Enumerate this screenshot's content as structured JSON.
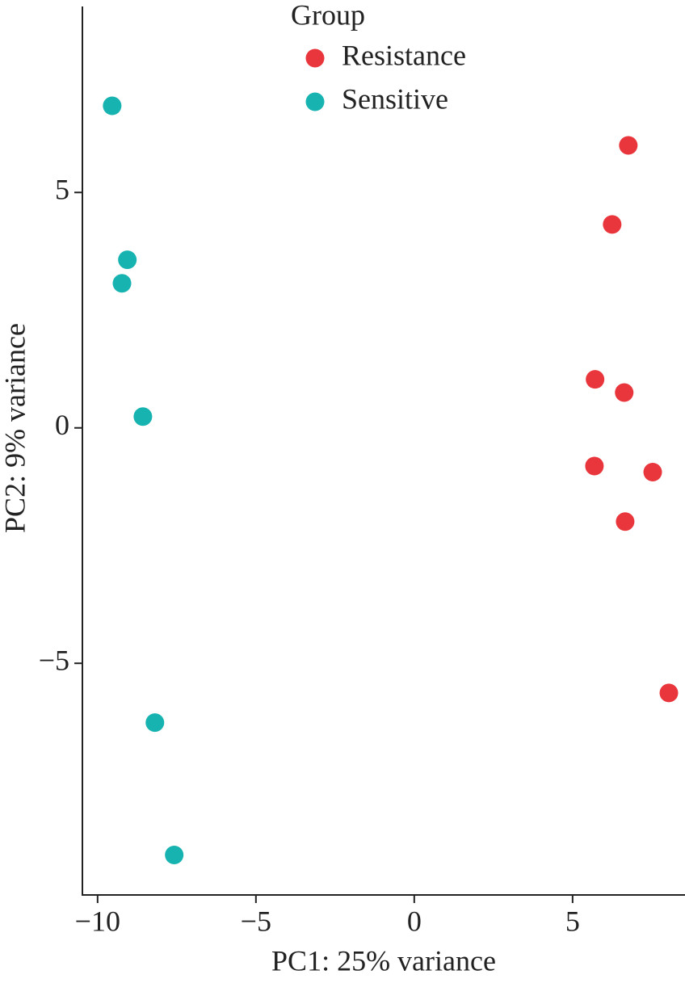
{
  "chart_data": {
    "type": "scatter",
    "x_label": "PC1: 25% variance",
    "y_label": "PC2: 9% variance",
    "legend_title": "Group",
    "legend": "top",
    "xlim": [
      -10.48,
      8.55
    ],
    "ylim": [
      -9.92,
      8.95
    ],
    "xticks": [
      {
        "value": -10,
        "label": "−10"
      },
      {
        "value": -5,
        "label": "−5"
      },
      0,
      5
    ],
    "yticks": [
      {
        "value": -5,
        "label": "−5"
      },
      0,
      5
    ],
    "series": [
      {
        "name": "Resistance",
        "color": "#e8363c",
        "x": [
          6.76,
          6.25,
          5.71,
          6.63,
          5.69,
          7.53,
          6.66,
          8.04
        ],
        "values": [
          6.0,
          4.32,
          1.03,
          0.75,
          -0.81,
          -0.94,
          -1.99,
          -5.63
        ]
      },
      {
        "name": "Sensitive",
        "color": "#17b3b0",
        "x": [
          -9.54,
          -9.06,
          -9.23,
          -8.57,
          -8.19,
          -7.58
        ],
        "values": [
          6.84,
          3.57,
          3.07,
          0.24,
          -6.26,
          -9.07
        ]
      }
    ]
  }
}
